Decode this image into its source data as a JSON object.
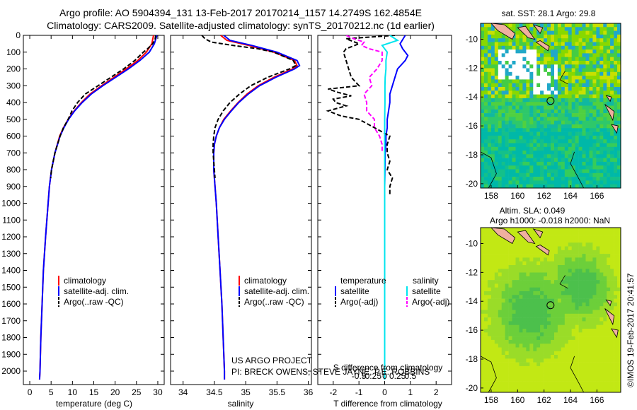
{
  "header": {
    "line1": "Argo profile: AO 5904394_131 13-Feb-2017 20170214_1157 14.2749S 162.4854E",
    "line2": "Climatology: CARS2009. Satellite-adjusted climatology: synTS_20170212.nc (1d earlier)"
  },
  "colors": {
    "climatology": "#ff0000",
    "satellite": "#0000ff",
    "argo": "#000000",
    "satellite_salinity": "#00e5ee",
    "argo_salinity": "#ff00ff"
  },
  "chart_data": [
    {
      "type": "line",
      "name": "temperature-profile",
      "xlabel": "temperature (deg C)",
      "ylabel": "",
      "xlim": [
        -1.5,
        31.5
      ],
      "ylim": [
        2080,
        0
      ],
      "xticks": [
        0,
        5,
        10,
        15,
        20,
        25,
        30
      ],
      "yticks": [
        0,
        100,
        200,
        300,
        400,
        500,
        600,
        700,
        800,
        900,
        1000,
        1100,
        1200,
        1300,
        1400,
        1500,
        1600,
        1700,
        1800,
        1900,
        2000
      ],
      "legend": [
        "climatology",
        "satellite-adj. clim.",
        "Argo(..raw -QC)"
      ],
      "series": [
        {
          "name": "climatology",
          "color": "#ff0000",
          "dash": "solid",
          "depth": [
            0,
            50,
            100,
            150,
            200,
            250,
            300,
            350,
            400,
            450,
            500,
            550,
            600,
            700,
            800,
            900,
            1000,
            1200,
            1400,
            1600,
            1800,
            2000,
            2050
          ],
          "values": [
            29.0,
            28.6,
            27.3,
            25.3,
            22.6,
            19.7,
            16.8,
            14.1,
            12.1,
            10.4,
            9.0,
            7.9,
            7.0,
            5.9,
            5.1,
            4.6,
            4.3,
            3.7,
            3.2,
            2.9,
            2.6,
            2.4,
            2.3
          ]
        },
        {
          "name": "satellite-adj. clim.",
          "color": "#0000ff",
          "dash": "solid",
          "depth": [
            0,
            50,
            100,
            150,
            200,
            250,
            300,
            350,
            400,
            450,
            500,
            550,
            600,
            700,
            800,
            900,
            1000,
            1200,
            1400,
            1600,
            1800,
            2000,
            2050
          ],
          "values": [
            29.8,
            29.2,
            28.0,
            25.8,
            23.1,
            20.1,
            17.1,
            14.4,
            12.3,
            10.5,
            9.1,
            8.0,
            7.1,
            5.9,
            5.1,
            4.6,
            4.3,
            3.7,
            3.2,
            2.9,
            2.6,
            2.4,
            2.3
          ]
        },
        {
          "name": "Argo(..raw -QC)",
          "color": "#000000",
          "dash": "dashed",
          "depth": [
            0,
            20,
            50,
            80,
            100,
            150,
            200,
            250,
            300,
            350,
            400,
            450,
            500,
            550,
            600,
            650,
            700,
            750,
            800,
            850
          ],
          "values": [
            29.5,
            29.4,
            28.8,
            27.6,
            26.6,
            24.6,
            22.0,
            19.0,
            16.0,
            13.0,
            11.2,
            9.9,
            9.0,
            7.9,
            7.1,
            6.5,
            5.9,
            5.5,
            5.1,
            4.9
          ]
        }
      ]
    },
    {
      "type": "line",
      "name": "salinity-profile",
      "xlabel": "salinity",
      "ylabel": "",
      "xlim": [
        33.8,
        36.05
      ],
      "ylim": [
        2080,
        0
      ],
      "xticks": [
        34,
        34.5,
        35,
        35.5,
        36
      ],
      "legend": [
        "climatology",
        "satellite-adj. clim.",
        "Argo(..raw -QC)"
      ],
      "series": [
        {
          "name": "climatology",
          "color": "#ff0000",
          "dash": "solid",
          "depth": [
            0,
            30,
            60,
            100,
            150,
            180,
            200,
            250,
            300,
            350,
            400,
            450,
            500,
            550,
            600,
            650,
            700,
            800,
            900,
            1000,
            1200,
            1400,
            1600,
            1800,
            2000,
            2050
          ],
          "values": [
            34.6,
            34.7,
            35.05,
            35.45,
            35.78,
            35.82,
            35.75,
            35.45,
            35.2,
            35.02,
            34.88,
            34.76,
            34.65,
            34.58,
            34.53,
            34.5,
            34.49,
            34.49,
            34.51,
            34.53,
            34.56,
            34.59,
            34.62,
            34.64,
            34.66,
            34.66
          ]
        },
        {
          "name": "satellite-adj. clim.",
          "color": "#0000ff",
          "dash": "solid",
          "depth": [
            0,
            30,
            60,
            100,
            150,
            180,
            200,
            250,
            300,
            350,
            400,
            450,
            500,
            550,
            600,
            650,
            700,
            800,
            900,
            1000,
            1200,
            1400,
            1600,
            1800,
            2000,
            2050
          ],
          "values": [
            34.65,
            34.75,
            35.1,
            35.5,
            35.82,
            35.86,
            35.78,
            35.48,
            35.22,
            35.04,
            34.89,
            34.77,
            34.66,
            34.58,
            34.53,
            34.5,
            34.49,
            34.49,
            34.51,
            34.53,
            34.56,
            34.59,
            34.62,
            34.64,
            34.66,
            34.66
          ]
        },
        {
          "name": "Argo(..raw -QC)",
          "color": "#000000",
          "dash": "dashed",
          "depth": [
            0,
            20,
            40,
            60,
            80,
            100,
            150,
            180,
            200,
            250,
            300,
            350,
            400,
            450,
            500,
            550,
            600,
            650,
            700,
            750,
            800,
            850
          ],
          "values": [
            34.3,
            34.35,
            34.45,
            34.8,
            35.2,
            35.45,
            35.76,
            35.8,
            35.7,
            35.35,
            35.08,
            34.9,
            34.75,
            34.64,
            34.56,
            34.51,
            34.49,
            34.48,
            34.48,
            34.49,
            34.5,
            34.51
          ]
        }
      ]
    },
    {
      "type": "line",
      "name": "difference-profile",
      "xlabel": "T difference from climatology",
      "top_label": "S difference from climatology",
      "xlim": [
        -2.6,
        2.6
      ],
      "ylim": [
        2080,
        0
      ],
      "xticks": [
        -2,
        -1,
        0,
        1,
        2
      ],
      "top_ticks": [
        "-0.5",
        "-0.25",
        "0",
        "0.25",
        "0.5"
      ],
      "legend": {
        "temperature_header": "temperature",
        "salinity_header": "salinity",
        "entries": [
          "satellite",
          "Argo(-adj)",
          "satellite",
          "Argo(-adj)"
        ]
      },
      "series": [
        {
          "name": "temperature satellite",
          "color": "#0000ff",
          "dash": "solid",
          "depth": [
            0,
            50,
            80,
            120,
            150,
            200,
            250,
            300,
            350,
            400,
            450,
            500,
            550,
            600,
            650,
            700,
            800,
            900,
            1000,
            1200,
            1500,
            2000,
            2050
          ],
          "values": [
            0.8,
            0.6,
            0.7,
            0.9,
            0.8,
            0.5,
            0.4,
            0.3,
            0.2,
            0.2,
            0.15,
            0.1,
            0.1,
            0.05,
            0.05,
            0.02,
            0.01,
            0,
            0,
            0,
            0,
            0,
            0
          ]
        },
        {
          "name": "temperature Argo(-adj)",
          "color": "#000000",
          "dash": "dashed",
          "depth": [
            0,
            20,
            50,
            80,
            100,
            150,
            200,
            250,
            300,
            320,
            340,
            360,
            380,
            400,
            420,
            450,
            480,
            500,
            550,
            600,
            650,
            700,
            750,
            800,
            850,
            900,
            950
          ],
          "values": [
            0.4,
            -1.5,
            -1.0,
            -1.5,
            -1.6,
            -1.5,
            -1.4,
            -1.3,
            -1.0,
            -2.2,
            -1.8,
            -1.3,
            -2.0,
            -1.9,
            -1.5,
            -2.2,
            -1.7,
            -1.0,
            -0.4,
            0.2,
            0.1,
            0.1,
            0.2,
            0.1,
            0.3,
            0.2,
            0.2
          ]
        },
        {
          "name": "salinity satellite",
          "color": "#00e5ee",
          "dash": "solid",
          "depth": [
            0,
            30,
            60,
            100,
            150,
            200,
            250,
            300,
            400,
            500,
            600,
            800,
            1000,
            1500,
            2000,
            2050
          ],
          "values": [
            0.2,
            0.5,
            -0.1,
            0.1,
            0.05,
            0.05,
            0.02,
            0.01,
            0.01,
            0,
            0,
            0,
            0,
            0,
            0,
            0
          ]
        },
        {
          "name": "salinity Argo(-adj)",
          "color": "#ff00ff",
          "dash": "dashed",
          "depth": [
            0,
            20,
            40,
            60,
            80,
            100,
            150,
            200,
            250,
            300,
            350,
            400,
            450,
            500,
            550,
            600,
            650,
            700
          ],
          "values": [
            -1.5,
            -1.2,
            -0.8,
            -0.9,
            -0.6,
            -0.1,
            -0.1,
            -0.3,
            -0.6,
            -0.5,
            -0.8,
            -0.7,
            -0.7,
            -0.4,
            -0.4,
            -0.2,
            -0.1,
            -0.1
          ]
        }
      ]
    },
    {
      "type": "heatmap",
      "name": "sst-map",
      "title": "sat. SST: 28.1  Argo: 29.8",
      "xlim": [
        157.2,
        167.8
      ],
      "ylim": [
        -20.3,
        -8.9
      ],
      "xticks": [
        158,
        160,
        162,
        164,
        166
      ],
      "yticks": [
        -10,
        -12,
        -14,
        -16,
        -18,
        -20
      ],
      "argo_marker": {
        "lon": 162.49,
        "lat": -14.27
      }
    },
    {
      "type": "heatmap",
      "name": "sla-map",
      "title_line1": "Altim. SLA: 0.049",
      "title_line2": "Argo h1000: -0.018 h2000: NaN",
      "xlim": [
        157.2,
        167.8
      ],
      "ylim": [
        -20.3,
        -8.9
      ],
      "xticks": [
        158,
        160,
        162,
        164,
        166
      ],
      "yticks": [
        -10,
        -12,
        -14,
        -16,
        -18,
        -20
      ],
      "argo_marker": {
        "lon": 162.49,
        "lat": -14.27
      }
    }
  ],
  "credits": {
    "project": "US ARGO PROJECT",
    "pi": "PI: BRECK OWENS, STEVE JAYNE, P.E. ROBBINS",
    "stamp": "©IMOS 19-Feb-2017 20:41:57"
  }
}
